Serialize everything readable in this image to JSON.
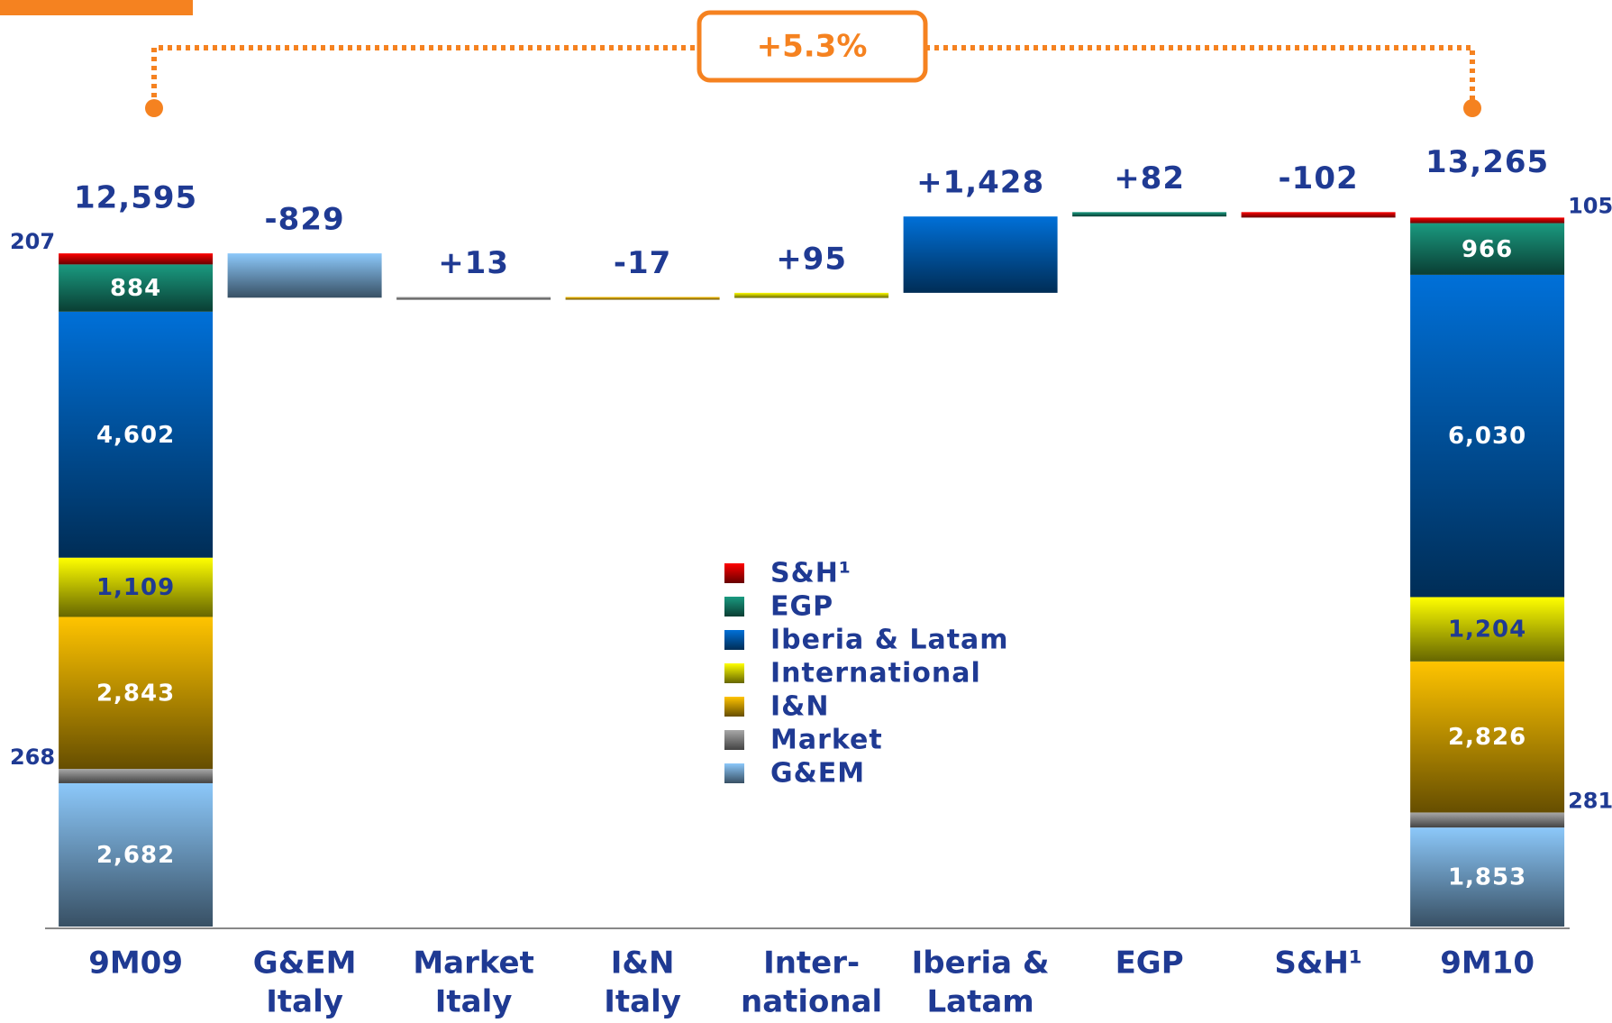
{
  "chart_data": {
    "type": "waterfall",
    "annotation": "+5.3%",
    "categories": [
      [
        "9M09"
      ],
      [
        "G&EM",
        "Italy"
      ],
      [
        "Market",
        "Italy"
      ],
      [
        "I&N",
        "Italy"
      ],
      [
        "Inter-",
        "national"
      ],
      [
        "Iberia &",
        "Latam"
      ],
      [
        "EGP"
      ],
      [
        "S&H¹"
      ],
      [
        "9M10"
      ]
    ],
    "series": [
      {
        "name": "G&EM",
        "color": "#8cc8fa",
        "values": [
          2682,
          -829,
          null,
          null,
          null,
          null,
          null,
          null,
          1853
        ],
        "value_labels": [
          "2,682",
          "-829",
          null,
          null,
          null,
          null,
          null,
          null,
          "1,853"
        ]
      },
      {
        "name": "Market",
        "color": "#a8a8a8",
        "values": [
          268,
          null,
          13,
          null,
          null,
          null,
          null,
          null,
          281
        ],
        "value_labels": [
          "268",
          null,
          "+13",
          null,
          null,
          null,
          null,
          null,
          "281"
        ]
      },
      {
        "name": "I&N",
        "color": "#ffc400",
        "values": [
          2843,
          null,
          null,
          -17,
          null,
          null,
          null,
          null,
          2826
        ],
        "value_labels": [
          "2,843",
          null,
          null,
          "-17",
          null,
          null,
          null,
          null,
          "2,826"
        ]
      },
      {
        "name": "International",
        "color": "#ffff00",
        "values": [
          1109,
          null,
          null,
          null,
          95,
          null,
          null,
          null,
          1204
        ],
        "value_labels": [
          "1,109",
          null,
          null,
          null,
          "+95",
          null,
          null,
          null,
          "1,204"
        ]
      },
      {
        "name": "Iberia & Latam",
        "color": "#0070d8",
        "values": [
          4602,
          null,
          null,
          null,
          null,
          1428,
          null,
          null,
          6030
        ],
        "value_labels": [
          "4,602",
          null,
          null,
          null,
          null,
          "+1,428",
          null,
          null,
          "6,030"
        ]
      },
      {
        "name": "EGP",
        "color": "#1a9a80",
        "values": [
          884,
          null,
          null,
          null,
          null,
          null,
          82,
          null,
          966
        ],
        "value_labels": [
          "884",
          null,
          null,
          null,
          null,
          null,
          "+82",
          null,
          "966"
        ]
      },
      {
        "name": "S&H¹",
        "color": "#ff0000",
        "values": [
          207,
          null,
          null,
          null,
          null,
          null,
          null,
          -102,
          105
        ],
        "value_labels": [
          "207",
          null,
          null,
          null,
          null,
          null,
          null,
          "-102",
          "105"
        ]
      }
    ],
    "totals": [
      12595,
      null,
      null,
      null,
      null,
      null,
      null,
      null,
      13265
    ],
    "total_labels": [
      "12,595",
      null,
      null,
      null,
      null,
      null,
      null,
      null,
      "13,265"
    ]
  }
}
